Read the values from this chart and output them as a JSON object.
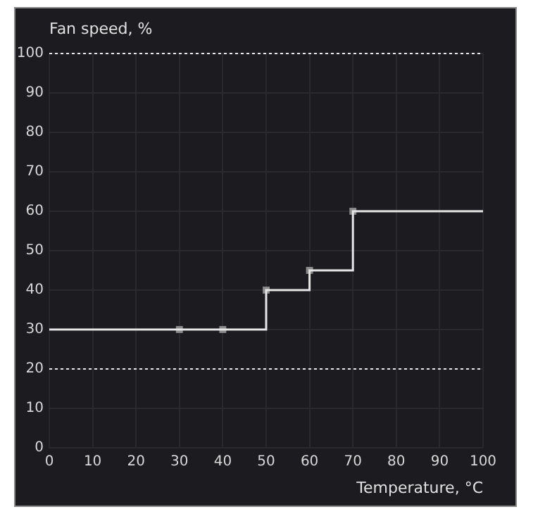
{
  "chart_data": {
    "type": "step",
    "xlabel": "Temperature, °C",
    "ylabel": "Fan speed, %",
    "series": [
      {
        "color": "#e6e6e6",
        "x": [
          0,
          30,
          40,
          50,
          60,
          70,
          100
        ],
        "values": [
          30,
          30,
          30,
          40,
          45,
          60,
          60
        ],
        "marker": "none"
      },
      {
        "type": "scatter",
        "color": "#8a8a8a",
        "x": [
          30,
          40,
          50,
          60,
          70
        ],
        "values": [
          30,
          30,
          40,
          45,
          60
        ],
        "marker": "square"
      }
    ],
    "xlim": [
      0,
      100
    ],
    "xticks": [
      0,
      10,
      20,
      30,
      40,
      50,
      60,
      70,
      80,
      90,
      100
    ],
    "ylim": [
      0,
      100
    ],
    "yticks": [
      0,
      10,
      20,
      30,
      40,
      50,
      60,
      70,
      80,
      90,
      100
    ],
    "ref_lines": [
      {
        "axis": "y",
        "value": 100,
        "color": "#e6e6e6",
        "line_style": "dotted"
      },
      {
        "axis": "y",
        "value": 20,
        "color": "#e6e6e6",
        "line_style": "dotted"
      }
    ],
    "grid": true,
    "legend": false
  }
}
